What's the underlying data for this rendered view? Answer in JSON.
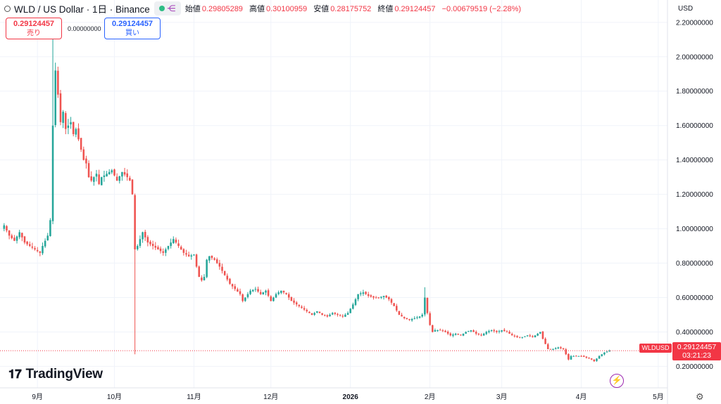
{
  "header": {
    "symbol": "WLD / US Dollar · 1日 · Binance",
    "labels": {
      "open": "始値",
      "high": "高値",
      "low": "安値",
      "close": "終値"
    },
    "open": "0.29805289",
    "high": "0.30100959",
    "low": "0.28175752",
    "close": "0.29124457",
    "change": "−0.00679519 (−2.28%)"
  },
  "trade": {
    "sell_price": "0.29124457",
    "sell_label": "売り",
    "spread": "0.00000000",
    "buy_price": "0.29124457",
    "buy_label": "買い"
  },
  "currency": "USD",
  "last_price": {
    "symbol_tag": "WLDUSD",
    "price": "0.29124457",
    "countdown": "03:21:23"
  },
  "brand": "TradingView",
  "colors": {
    "up": "#26a69a",
    "down": "#ef5350",
    "grid": "#f0f3fa",
    "accent": "#9c27b0"
  },
  "chart_data": {
    "type": "candlestick",
    "y_ticks": [
      0.2,
      0.4,
      0.6,
      0.8,
      1.0,
      1.2,
      1.4,
      1.6,
      1.8,
      2.0,
      2.2
    ],
    "y_tick_labels": [
      "0.20000000",
      "0.40000000",
      "0.60000000",
      "0.80000000",
      "1.00000000",
      "1.20000000",
      "1.40000000",
      "1.60000000",
      "1.80000000",
      "2.00000000",
      "2.20000000"
    ],
    "ylim": [
      0.075,
      2.33
    ],
    "x_ticks": [
      {
        "label": "9月",
        "index": 13
      },
      {
        "label": "10月",
        "index": 43
      },
      {
        "label": "11月",
        "index": 74
      },
      {
        "label": "12月",
        "index": 104
      },
      {
        "label": "2026",
        "index": 135,
        "bold": true
      },
      {
        "label": "2月",
        "index": 166
      },
      {
        "label": "3月",
        "index": 194
      },
      {
        "label": "4月",
        "index": 225
      },
      {
        "label": "5月",
        "index": 255
      }
    ],
    "total_slots": 258,
    "close_path": [
      [
        0,
        1.02
      ],
      [
        2,
        0.96
      ],
      [
        4,
        0.93
      ],
      [
        6,
        0.98
      ],
      [
        8,
        0.92
      ],
      [
        10,
        0.9
      ],
      [
        12,
        0.88
      ],
      [
        14,
        0.86
      ],
      [
        15,
        0.9
      ],
      [
        17,
        0.96
      ],
      [
        18,
        1.05
      ],
      [
        19,
        1.6
      ],
      [
        20,
        1.92
      ],
      [
        21,
        1.78
      ],
      [
        22,
        1.62
      ],
      [
        23,
        1.68
      ],
      [
        24,
        1.58
      ],
      [
        26,
        1.62
      ],
      [
        27,
        1.55
      ],
      [
        28,
        1.58
      ],
      [
        29,
        1.52
      ],
      [
        31,
        1.4
      ],
      [
        32,
        1.38
      ],
      [
        33,
        1.3
      ],
      [
        34,
        1.28
      ],
      [
        36,
        1.32
      ],
      [
        37,
        1.26
      ],
      [
        38,
        1.3
      ],
      [
        40,
        1.32
      ],
      [
        42,
        1.34
      ],
      [
        44,
        1.28
      ],
      [
        46,
        1.33
      ],
      [
        48,
        1.3
      ],
      [
        49,
        1.28
      ],
      [
        50,
        1.2
      ],
      [
        51,
        0.88
      ],
      [
        52,
        0.9
      ],
      [
        54,
        0.98
      ],
      [
        56,
        0.92
      ],
      [
        58,
        0.9
      ],
      [
        60,
        0.88
      ],
      [
        62,
        0.86
      ],
      [
        64,
        0.9
      ],
      [
        66,
        0.94
      ],
      [
        68,
        0.9
      ],
      [
        70,
        0.86
      ],
      [
        72,
        0.84
      ],
      [
        74,
        0.85
      ],
      [
        75,
        0.78
      ],
      [
        76,
        0.72
      ],
      [
        77,
        0.7
      ],
      [
        78,
        0.72
      ],
      [
        79,
        0.82
      ],
      [
        80,
        0.84
      ],
      [
        82,
        0.82
      ],
      [
        84,
        0.78
      ],
      [
        86,
        0.73
      ],
      [
        88,
        0.68
      ],
      [
        90,
        0.65
      ],
      [
        92,
        0.62
      ],
      [
        93,
        0.58
      ],
      [
        94,
        0.6
      ],
      [
        96,
        0.64
      ],
      [
        98,
        0.65
      ],
      [
        100,
        0.62
      ],
      [
        102,
        0.64
      ],
      [
        104,
        0.58
      ],
      [
        106,
        0.62
      ],
      [
        108,
        0.64
      ],
      [
        110,
        0.62
      ],
      [
        112,
        0.58
      ],
      [
        114,
        0.56
      ],
      [
        116,
        0.54
      ],
      [
        118,
        0.52
      ],
      [
        120,
        0.5
      ],
      [
        122,
        0.52
      ],
      [
        124,
        0.5
      ],
      [
        126,
        0.49
      ],
      [
        128,
        0.51
      ],
      [
        130,
        0.5
      ],
      [
        132,
        0.49
      ],
      [
        134,
        0.51
      ],
      [
        136,
        0.56
      ],
      [
        138,
        0.62
      ],
      [
        140,
        0.63
      ],
      [
        142,
        0.61
      ],
      [
        144,
        0.6
      ],
      [
        146,
        0.6
      ],
      [
        148,
        0.61
      ],
      [
        150,
        0.59
      ],
      [
        152,
        0.55
      ],
      [
        154,
        0.5
      ],
      [
        156,
        0.48
      ],
      [
        158,
        0.47
      ],
      [
        160,
        0.48
      ],
      [
        162,
        0.49
      ],
      [
        163,
        0.5
      ],
      [
        164,
        0.6
      ],
      [
        165,
        0.51
      ],
      [
        166,
        0.44
      ],
      [
        167,
        0.4
      ],
      [
        168,
        0.41
      ],
      [
        170,
        0.41
      ],
      [
        172,
        0.4
      ],
      [
        174,
        0.38
      ],
      [
        176,
        0.39
      ],
      [
        178,
        0.38
      ],
      [
        180,
        0.4
      ],
      [
        182,
        0.41
      ],
      [
        184,
        0.39
      ],
      [
        186,
        0.38
      ],
      [
        188,
        0.4
      ],
      [
        190,
        0.41
      ],
      [
        192,
        0.4
      ],
      [
        194,
        0.41
      ],
      [
        196,
        0.4
      ],
      [
        198,
        0.38
      ],
      [
        200,
        0.37
      ],
      [
        202,
        0.37
      ],
      [
        204,
        0.38
      ],
      [
        206,
        0.37
      ],
      [
        208,
        0.39
      ],
      [
        209,
        0.4
      ],
      [
        210,
        0.36
      ],
      [
        212,
        0.3
      ],
      [
        214,
        0.3
      ],
      [
        216,
        0.31
      ],
      [
        218,
        0.3
      ],
      [
        220,
        0.24
      ],
      [
        221,
        0.26
      ],
      [
        223,
        0.26
      ],
      [
        225,
        0.26
      ],
      [
        227,
        0.25
      ],
      [
        229,
        0.24
      ],
      [
        230,
        0.23
      ],
      [
        232,
        0.26
      ],
      [
        234,
        0.28
      ],
      [
        236,
        0.29
      ]
    ],
    "special_wicks": [
      {
        "index": 51,
        "low": 0.27
      },
      {
        "index": 19,
        "high": 2.18
      },
      {
        "index": 164,
        "high": 0.66
      }
    ]
  }
}
